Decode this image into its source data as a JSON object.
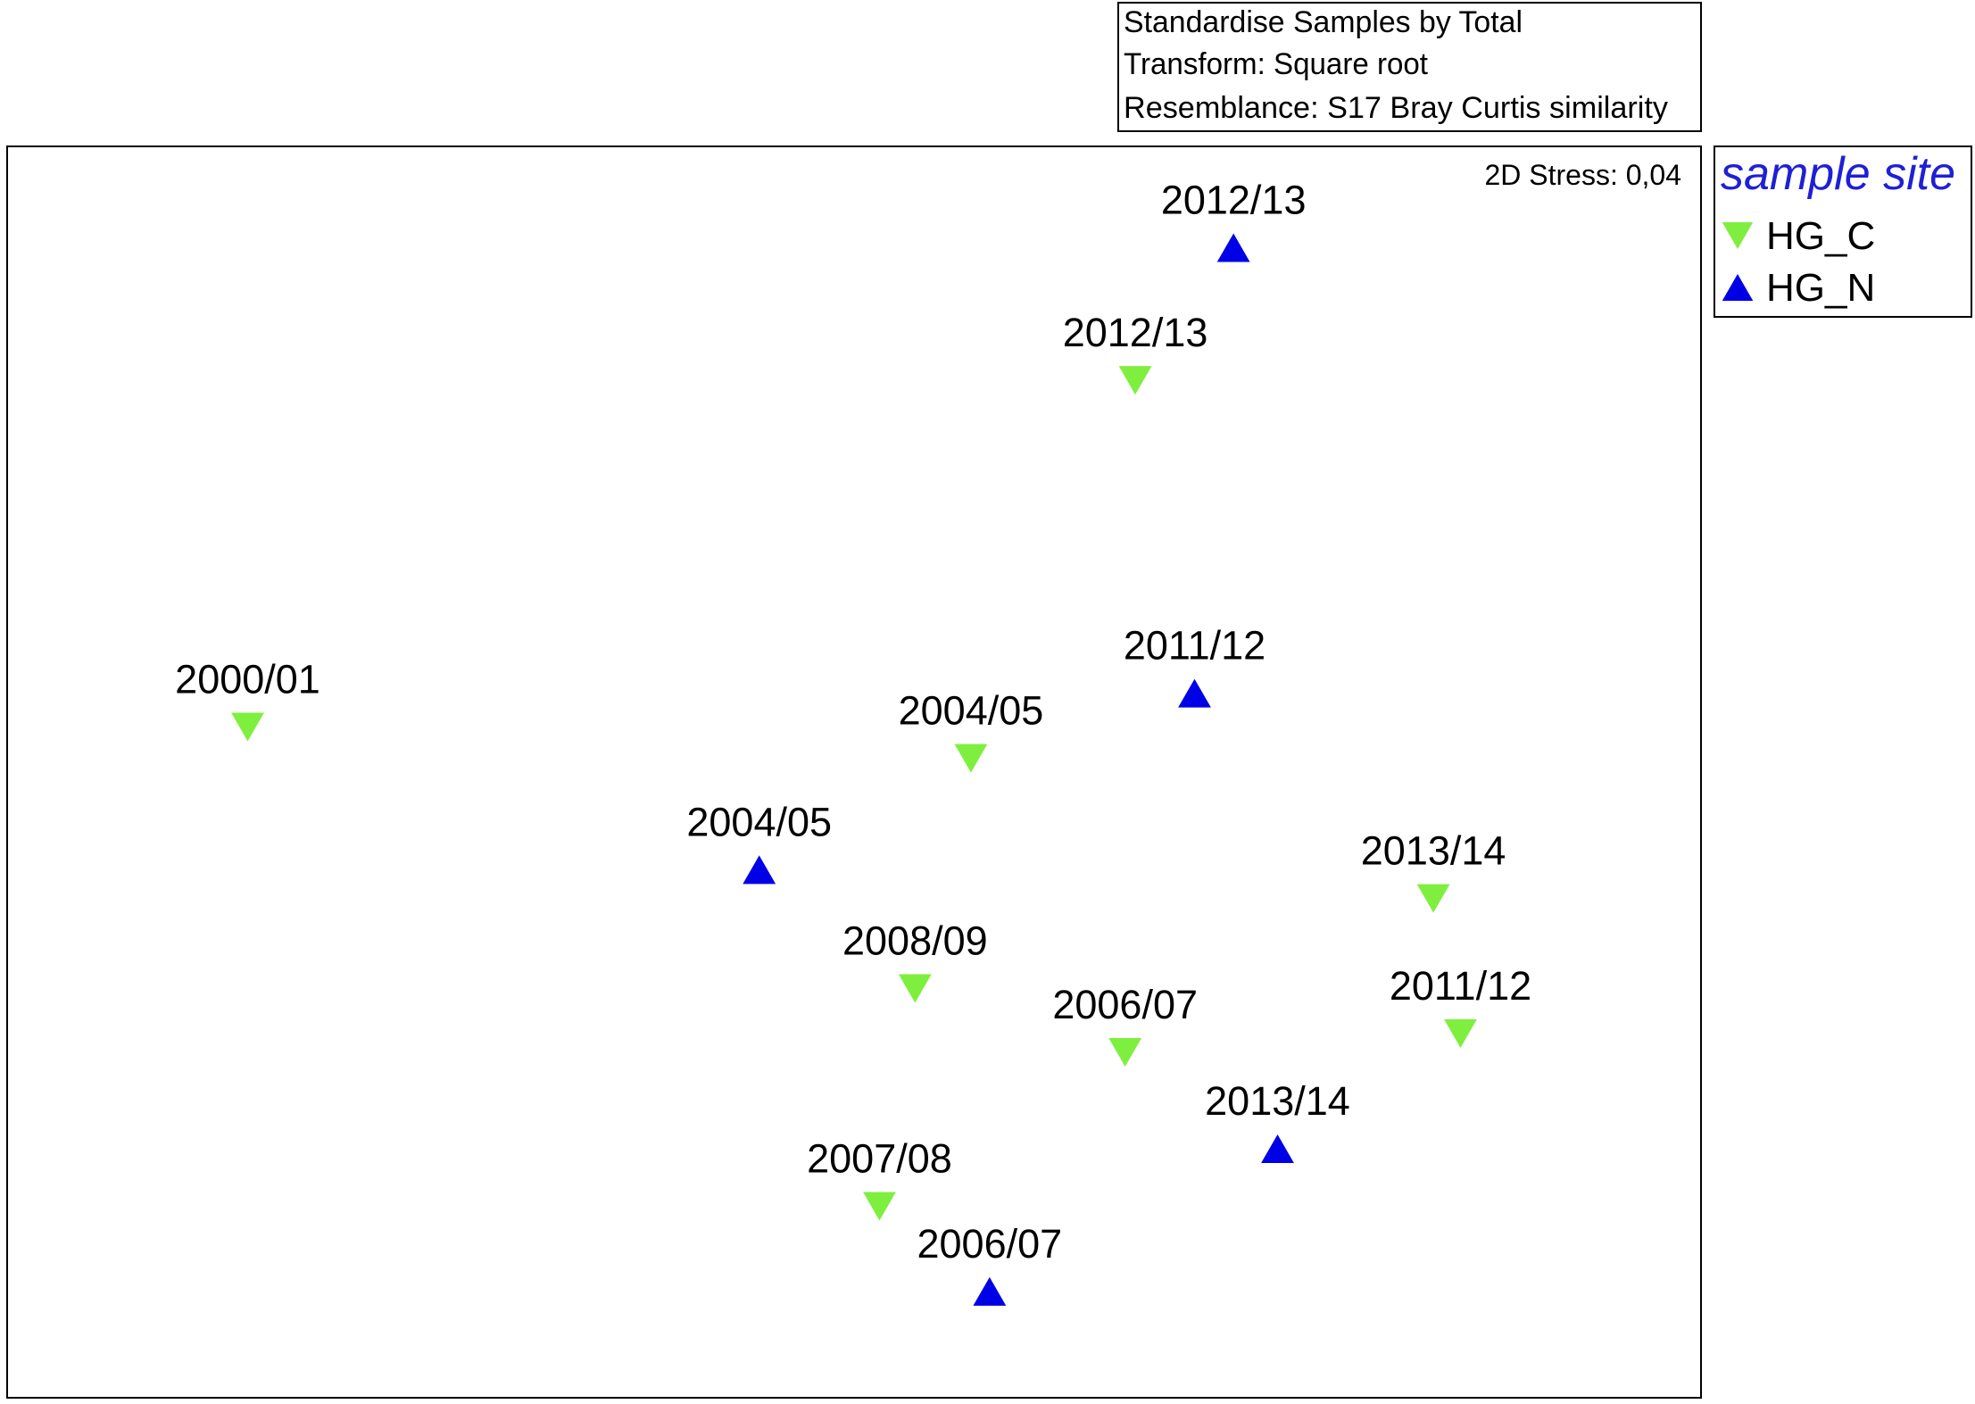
{
  "transform_note": {
    "lines": [
      "Standardise Samples by Total",
      "Transform: Square root",
      "Resemblance: S17 Bray Curtis similarity"
    ]
  },
  "stress_label": "2D Stress: 0,04",
  "legend": {
    "title": "sample site",
    "title_color": "#1f1fd6",
    "items": [
      {
        "name": "HG_C",
        "marker": "triangle-down",
        "color": "#7fef3f"
      },
      {
        "name": "HG_N",
        "marker": "triangle-up",
        "color": "#0000e6"
      }
    ]
  },
  "chart_data": {
    "type": "scatter",
    "title": "",
    "xlabel": "",
    "ylabel": "",
    "xlim": [
      0,
      100
    ],
    "ylim": [
      0,
      100
    ],
    "grid": false,
    "legend_position": "right",
    "series": [
      {
        "name": "HG_C",
        "marker": "triangle-down",
        "color": "#7fef3f",
        "points": [
          {
            "label": "2012/13",
            "x": 66.6,
            "y": 81.3
          },
          {
            "label": "2000/01",
            "x": 14.2,
            "y": 53.6
          },
          {
            "label": "2004/05",
            "x": 56.9,
            "y": 51.1
          },
          {
            "label": "2013/14",
            "x": 84.2,
            "y": 39.9
          },
          {
            "label": "2008/09",
            "x": 53.6,
            "y": 32.7
          },
          {
            "label": "2011/12",
            "x": 85.8,
            "y": 29.1
          },
          {
            "label": "2006/07",
            "x": 66.0,
            "y": 27.6
          },
          {
            "label": "2007/08",
            "x": 51.5,
            "y": 15.3
          }
        ]
      },
      {
        "name": "HG_N",
        "marker": "triangle-up",
        "color": "#0000e6",
        "points": [
          {
            "label": "2012/13",
            "x": 72.4,
            "y": 91.9
          },
          {
            "label": "2011/12",
            "x": 70.1,
            "y": 56.3
          },
          {
            "label": "2004/05",
            "x": 44.4,
            "y": 42.2
          },
          {
            "label": "2013/14",
            "x": 75.0,
            "y": 19.9
          },
          {
            "label": "2006/07",
            "x": 58.0,
            "y": 8.5
          }
        ]
      }
    ]
  }
}
